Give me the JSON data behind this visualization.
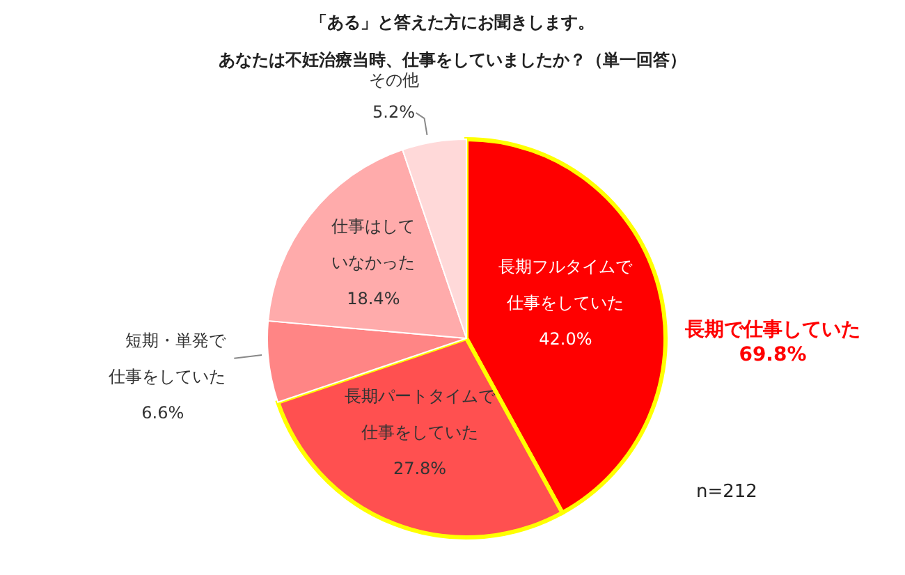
{
  "chart_data": {
    "type": "pie",
    "title": "「ある」と答えた方にお聞きします。",
    "subtitle": "あなたは不妊治療当時、仕事をしていましたか？（単一回答）",
    "categories": [
      "長期フルタイムで仕事をしていた",
      "長期パートタイムで仕事をしていた",
      "短期・単発で仕事をしていた",
      "仕事はしていなかった",
      "その他"
    ],
    "values": [
      42.0,
      27.8,
      6.6,
      18.4,
      5.2
    ],
    "value_labels": [
      "42.0%",
      "27.8%",
      "6.6%",
      "18.4%",
      "5.2%"
    ],
    "colors": [
      "#ff0000",
      "#ff5050",
      "#ff8585",
      "#ffabab",
      "#ffd9d9"
    ],
    "annotations": [
      "長期で仕事していた\n69.8%",
      "n=212"
    ]
  }
}
